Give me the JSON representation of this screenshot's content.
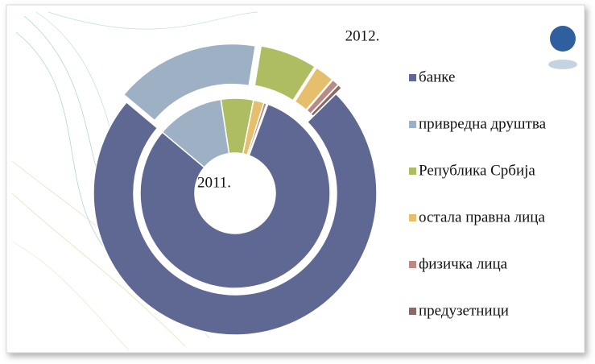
{
  "chart_data": {
    "type": "doughnut",
    "categories": [
      "банке",
      "привредна друштва",
      "Република Србија",
      "остала правна лица",
      "физичка лица",
      "предузетници"
    ],
    "colors": [
      "#5f6892",
      "#9db0c4",
      "#aebd62",
      "#e6bf6c",
      "#b98a86",
      "#8a6a68"
    ],
    "series": [
      {
        "name": "2011.",
        "values": [
          80.5,
          11.5,
          5.5,
          1.8,
          0.5,
          0.2
        ]
      },
      {
        "name": "2012.",
        "values": [
          73.5,
          16.5,
          6.5,
          2.2,
          0.8,
          0.5
        ]
      }
    ]
  }
}
